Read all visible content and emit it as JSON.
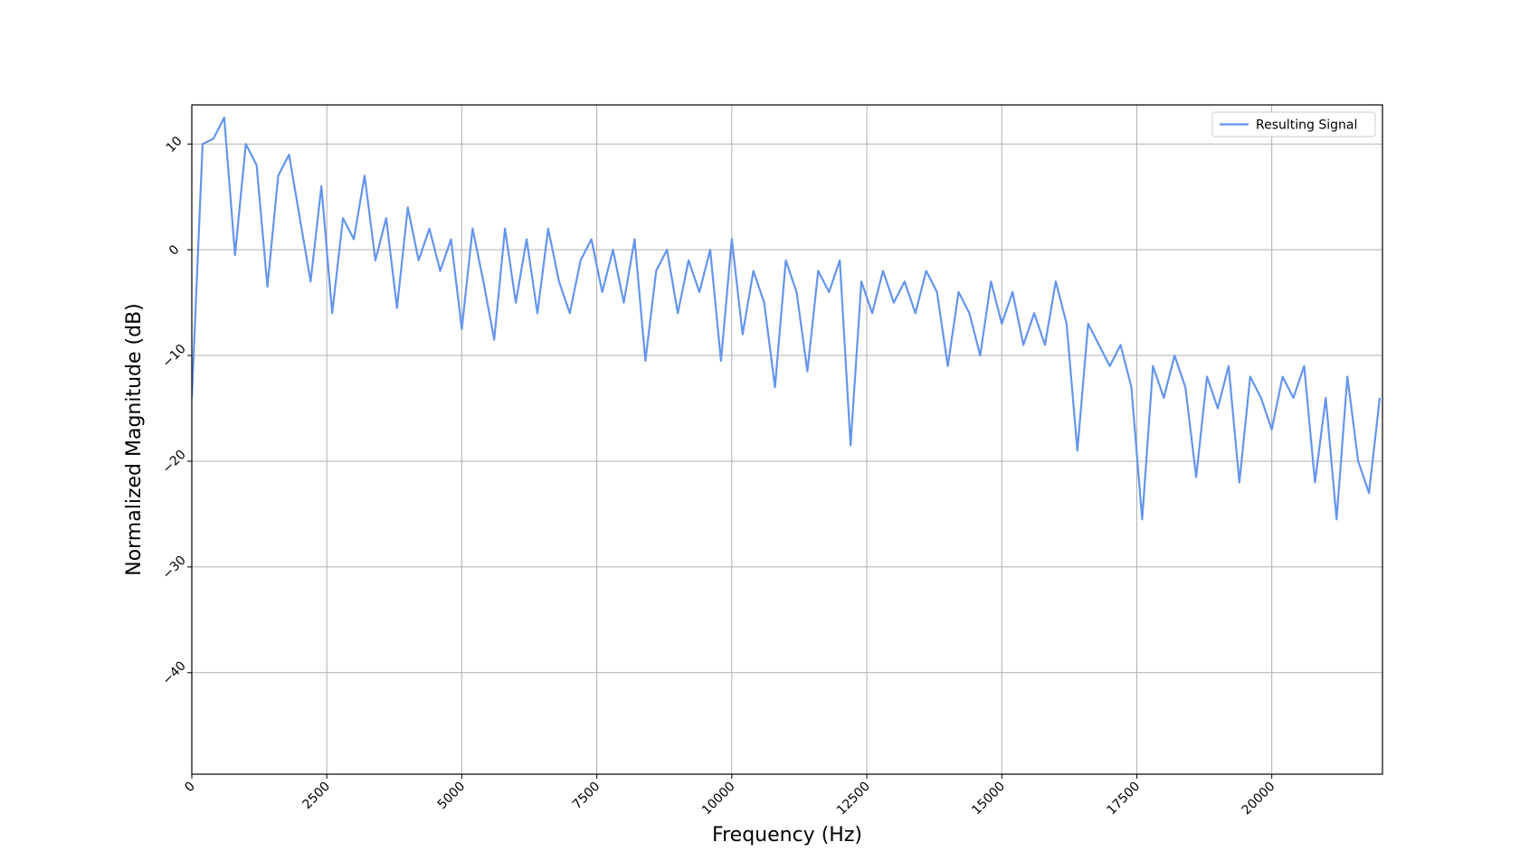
{
  "chart_data": {
    "type": "line",
    "xlabel": "Frequency (Hz)",
    "ylabel": "Normalized Magnitude (dB)",
    "x": [
      0,
      200,
      400,
      600,
      800,
      1000,
      1200,
      1400,
      1600,
      1800,
      2000,
      2200,
      2400,
      2600,
      2800,
      3000,
      3200,
      3400,
      3600,
      3800,
      4000,
      4200,
      4400,
      4600,
      4800,
      5000,
      5200,
      5400,
      5600,
      5800,
      6000,
      6200,
      6400,
      6600,
      6800,
      7000,
      7200,
      7400,
      7600,
      7800,
      8000,
      8200,
      8400,
      8600,
      8800,
      9000,
      9200,
      9400,
      9600,
      9800,
      10000,
      10200,
      10400,
      10600,
      10800,
      11000,
      11200,
      11400,
      11600,
      11800,
      12000,
      12200,
      12400,
      12600,
      12800,
      13000,
      13200,
      13400,
      13600,
      13800,
      14000,
      14200,
      14400,
      14600,
      14800,
      15000,
      15200,
      15400,
      15600,
      15800,
      16000,
      16200,
      16400,
      16600,
      16800,
      17000,
      17200,
      17400,
      17600,
      17800,
      18000,
      18200,
      18400,
      18600,
      18800,
      19000,
      19200,
      19400,
      19600,
      19800,
      20000,
      20200,
      20400,
      20600,
      20800,
      21000,
      21200,
      21400,
      21600,
      21800,
      22000
    ],
    "series": [
      {
        "name": "Resulting Signal",
        "color": "#6495ed",
        "values": [
          -14,
          10,
          10.5,
          12.5,
          -0.5,
          10,
          8,
          -3.5,
          7,
          9,
          3,
          -3,
          6,
          -6,
          3,
          1,
          7,
          -1,
          3,
          -5.5,
          4,
          -1,
          2,
          -2,
          1,
          -7.5,
          2,
          -3,
          -8.5,
          2,
          -5,
          1,
          -6,
          2,
          -3,
          -6,
          -1,
          1,
          -4,
          0,
          -5,
          1,
          -10.5,
          -2,
          0,
          -6,
          -1,
          -4,
          0,
          -10.5,
          1,
          -8,
          -2,
          -5,
          -13,
          -1,
          -4,
          -11.5,
          -2,
          -4,
          -1,
          -18.5,
          -3,
          -6,
          -2,
          -5,
          -3,
          -6,
          -2,
          -4,
          -11,
          -4,
          -6,
          -10,
          -3,
          -7,
          -4,
          -9,
          -6,
          -9,
          -3,
          -7,
          -19,
          -7,
          -9,
          -11,
          -9,
          -13,
          -25.5,
          -11,
          -14,
          -10,
          -13,
          -21.5,
          -12,
          -15,
          -11,
          -22,
          -12,
          -14,
          -17,
          -12,
          -14,
          -11,
          -22,
          -14,
          -25.5,
          -12,
          -20,
          -23,
          -14
        ]
      }
    ],
    "xlim": [
      0,
      22050
    ],
    "ylim": [
      -49.6,
      13.7
    ],
    "xticks": [
      0,
      2500,
      5000,
      7500,
      10000,
      12500,
      15000,
      17500,
      20000
    ],
    "yticks": [
      {
        "value": -40,
        "label": "−40"
      },
      {
        "value": -30,
        "label": "−30"
      },
      {
        "value": -20,
        "label": "−20"
      },
      {
        "value": -10,
        "label": "−10"
      },
      0,
      10
    ],
    "grid": true,
    "legend": "upper right"
  }
}
